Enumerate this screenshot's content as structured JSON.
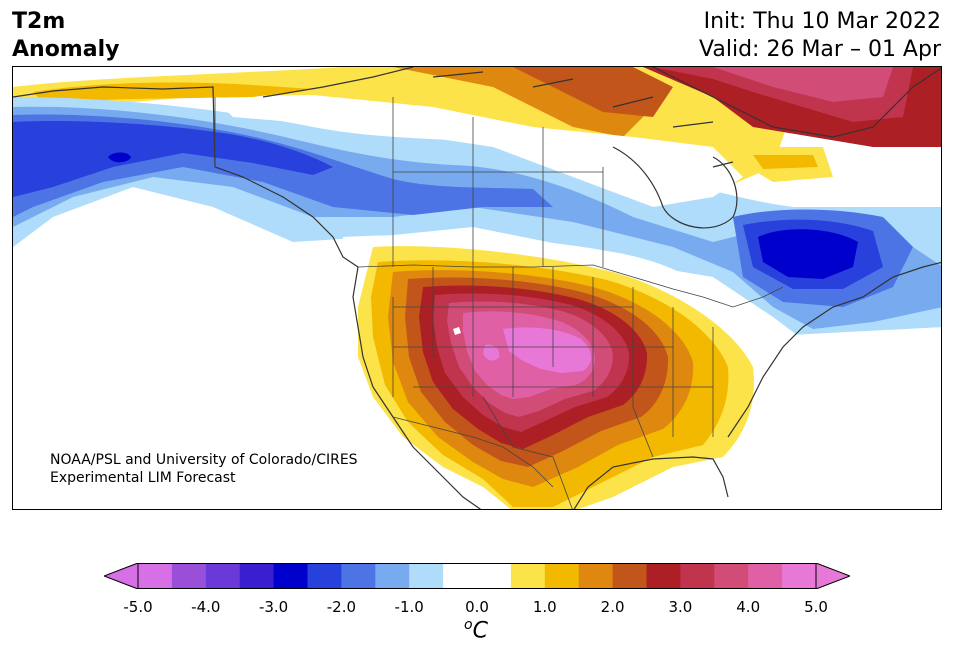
{
  "title": {
    "line1": "T2m",
    "line2": "Anomaly"
  },
  "dates": {
    "init": "Init: Thu 10 Mar 2022",
    "valid": "Valid: 26 Mar – 01 Apr"
  },
  "credit": {
    "line1": "NOAA/PSL and University of Colorado/CIRES",
    "line2": "Experimental LIM Forecast"
  },
  "colorbar": {
    "unit_sup": "o",
    "unit_main": "C",
    "ticks": [
      "-5.0",
      "-4.0",
      "-3.0",
      "-2.0",
      "-1.0",
      "0.0",
      "1.0",
      "2.0",
      "3.0",
      "4.0",
      "5.0"
    ],
    "colors": [
      "#d770e6",
      "#9a4fd8",
      "#6a3ad8",
      "#3a1fd0",
      "#0000cd",
      "#2840dc",
      "#4c74e4",
      "#78aaf0",
      "#aedcfa",
      "#ffffff",
      "#ffffff",
      "#fde34a",
      "#f3b800",
      "#de8810",
      "#c2561a",
      "#ac2025",
      "#c0344e",
      "#d24c78",
      "#e060a6",
      "#e878d8"
    ],
    "under_color": "#d770e6",
    "over_color": "#e878d8"
  },
  "map_colors": {
    "land_line": "#333333",
    "state_line": "#444444"
  }
}
